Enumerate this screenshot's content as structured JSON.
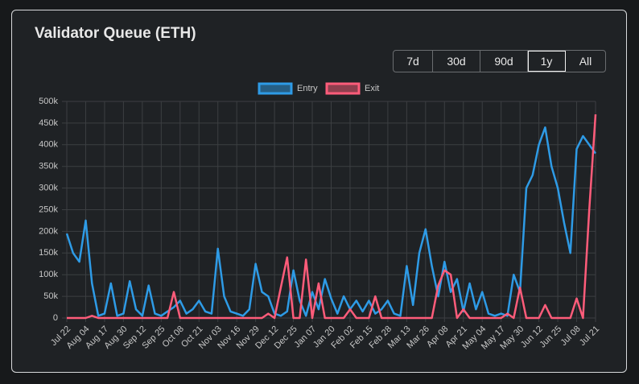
{
  "header": {
    "title": "Validator Queue (ETH)"
  },
  "ranges": {
    "options": [
      "7d",
      "30d",
      "90d",
      "1y",
      "All"
    ],
    "selected": "1y"
  },
  "chart_data": {
    "type": "line",
    "categories": [
      "Jul 22",
      null,
      null,
      "Aug 04",
      null,
      null,
      "Aug 17",
      null,
      null,
      "Aug 30",
      null,
      null,
      "Sep 12",
      null,
      null,
      "Sep 25",
      null,
      null,
      "Oct 08",
      null,
      null,
      "Oct 21",
      null,
      null,
      "Nov 03",
      null,
      null,
      "Nov 16",
      null,
      null,
      "Nov 29",
      null,
      null,
      "Dec 12",
      null,
      null,
      "Dec 25",
      null,
      null,
      "Jan 07",
      null,
      null,
      "Jan 20",
      null,
      null,
      "Feb 02",
      null,
      null,
      "Feb 15",
      null,
      null,
      "Feb 28",
      null,
      null,
      "Mar 13",
      null,
      null,
      "Mar 26",
      null,
      null,
      "Apr 08",
      null,
      null,
      "Apr 21",
      null,
      null,
      "May 04",
      null,
      null,
      "May 17",
      null,
      null,
      "May 30",
      null,
      null,
      "Jun 12",
      null,
      null,
      "Jun 25",
      null,
      null,
      "Jul 08",
      null,
      null,
      "Jul 21"
    ],
    "series": [
      {
        "name": "Entry",
        "color": "#2e9be6",
        "values": [
          195000,
          150000,
          130000,
          225000,
          80000,
          5000,
          10000,
          80000,
          5000,
          10000,
          85000,
          20000,
          5000,
          75000,
          10000,
          5000,
          15000,
          25000,
          40000,
          10000,
          20000,
          40000,
          15000,
          10000,
          160000,
          50000,
          15000,
          10000,
          5000,
          20000,
          125000,
          60000,
          50000,
          10000,
          5000,
          15000,
          110000,
          40000,
          5000,
          60000,
          20000,
          90000,
          45000,
          10000,
          50000,
          20000,
          40000,
          15000,
          40000,
          10000,
          20000,
          40000,
          10000,
          5000,
          120000,
          30000,
          150000,
          205000,
          120000,
          50000,
          130000,
          60000,
          90000,
          15000,
          80000,
          20000,
          60000,
          10000,
          5000,
          10000,
          5000,
          100000,
          60000,
          300000,
          330000,
          400000,
          440000,
          350000,
          300000,
          220000,
          150000,
          390000,
          420000,
          400000,
          380000
        ]
      },
      {
        "name": "Exit",
        "color": "#ff5c7a",
        "values": [
          0,
          0,
          0,
          0,
          5000,
          0,
          0,
          0,
          0,
          0,
          0,
          0,
          0,
          0,
          0,
          0,
          0,
          60000,
          0,
          0,
          0,
          0,
          0,
          0,
          0,
          0,
          0,
          0,
          0,
          0,
          0,
          0,
          10000,
          0,
          70000,
          140000,
          0,
          0,
          135000,
          0,
          80000,
          0,
          0,
          0,
          0,
          20000,
          0,
          0,
          0,
          50000,
          0,
          0,
          0,
          0,
          0,
          0,
          0,
          0,
          0,
          75000,
          110000,
          100000,
          0,
          20000,
          0,
          0,
          0,
          0,
          0,
          0,
          10000,
          0,
          70000,
          0,
          0,
          0,
          30000,
          0,
          0,
          0,
          0,
          45000,
          0,
          250000,
          470000
        ]
      }
    ],
    "ylim": [
      0,
      500000
    ],
    "yticks": [
      0,
      {
        "value": 50000,
        "label": "50k"
      },
      {
        "value": 100000,
        "label": "100k"
      },
      {
        "value": 150000,
        "label": "150k"
      },
      {
        "value": 200000,
        "label": "200k"
      },
      {
        "value": 250000,
        "label": "250k"
      },
      {
        "value": 300000,
        "label": "300k"
      },
      {
        "value": 350000,
        "label": "350k"
      },
      {
        "value": 400000,
        "label": "400k"
      },
      {
        "value": 450000,
        "label": "450k"
      },
      {
        "value": 500000,
        "label": "500k"
      }
    ],
    "grid": true,
    "legend": "top"
  }
}
